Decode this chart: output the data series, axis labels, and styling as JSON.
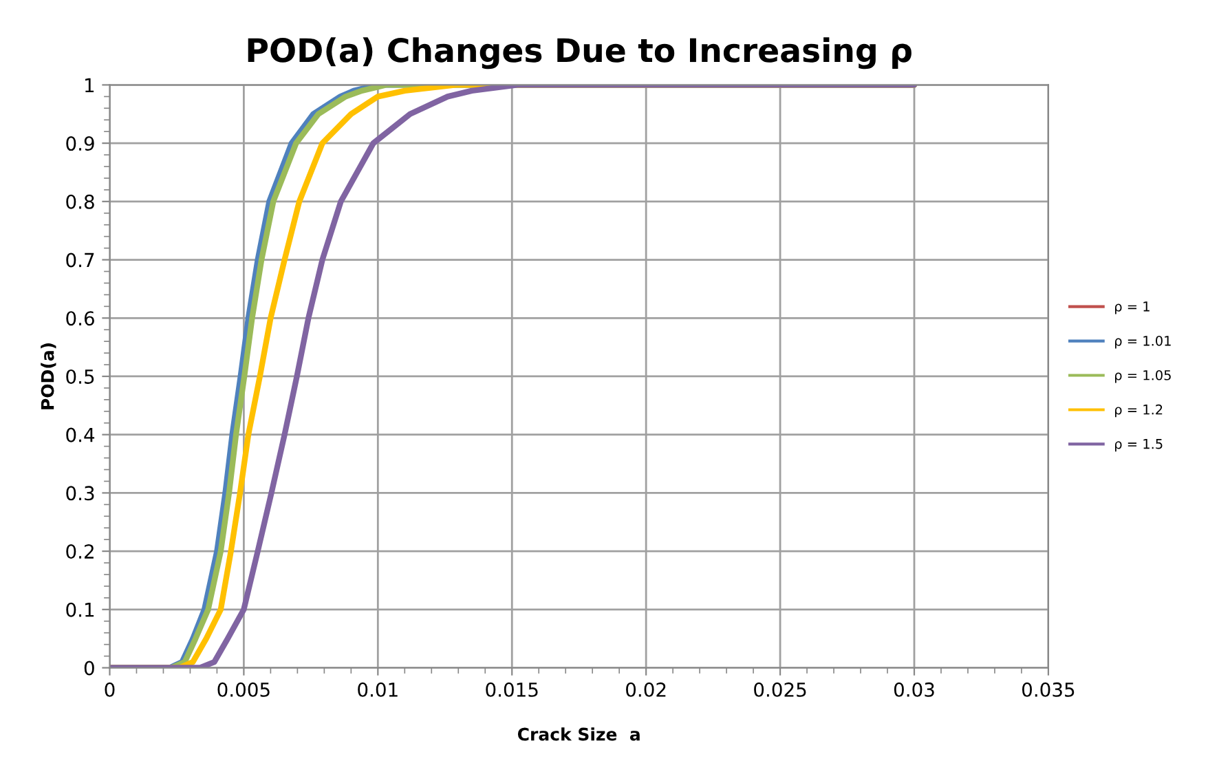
{
  "chart_data": {
    "type": "line",
    "title": "POD(a) Changes Due to Increasing ρ",
    "xlabel": "Crack Size  a",
    "ylabel": "POD(a)",
    "xlim": [
      0,
      0.035
    ],
    "xticks": [
      0,
      0.005,
      0.01,
      0.015,
      0.02,
      0.025,
      0.03,
      0.035
    ],
    "ylim": [
      0,
      1
    ],
    "yticks": [
      0,
      0.1,
      0.2,
      0.3,
      0.4,
      0.5,
      0.6,
      0.7,
      0.8,
      0.9,
      1
    ],
    "grid": true,
    "legend": "right",
    "marker": "none",
    "line_style": "solid",
    "series": [
      {
        "name": "ρ = 1",
        "color": "#c0504d"
      },
      {
        "name": "ρ = 1.01",
        "color": "#4f81bd",
        "x": [
          0,
          0.00224,
          0.0027,
          0.0031,
          0.00353,
          0.004,
          0.00431,
          0.00457,
          0.00488,
          0.00517,
          0.00552,
          0.00595,
          0.00678,
          0.00759,
          0.0086,
          0.0091,
          0.01,
          0.03
        ],
        "values": [
          0,
          0,
          0.01,
          0.05,
          0.1,
          0.2,
          0.3,
          0.4,
          0.5,
          0.6,
          0.7,
          0.8,
          0.9,
          0.95,
          0.98,
          0.99,
          1,
          1
        ]
      },
      {
        "name": "ρ = 1.05",
        "color": "#9bbb59",
        "x": [
          0,
          0.0023,
          0.0028,
          0.0032,
          0.00367,
          0.00414,
          0.00445,
          0.00471,
          0.00502,
          0.00531,
          0.00566,
          0.0061,
          0.00695,
          0.00778,
          0.0088,
          0.0094,
          0.0103,
          0.03
        ],
        "values": [
          0,
          0,
          0.01,
          0.05,
          0.1,
          0.2,
          0.3,
          0.4,
          0.5,
          0.6,
          0.7,
          0.8,
          0.9,
          0.95,
          0.98,
          0.99,
          1,
          1
        ]
      },
      {
        "name": "ρ = 1.2",
        "color": "#ffc000",
        "x": [
          0,
          0.0026,
          0.0031,
          0.0036,
          0.00414,
          0.00452,
          0.00486,
          0.00517,
          0.0056,
          0.006,
          0.00652,
          0.00707,
          0.00793,
          0.009,
          0.01,
          0.011,
          0.0129,
          0.03
        ],
        "values": [
          0,
          0,
          0.01,
          0.05,
          0.1,
          0.2,
          0.3,
          0.4,
          0.5,
          0.6,
          0.7,
          0.8,
          0.9,
          0.95,
          0.98,
          0.99,
          1,
          1
        ]
      },
      {
        "name": "ρ = 1.5",
        "color": "#8064a2",
        "x": [
          0,
          0.00336,
          0.0039,
          0.0044,
          0.005,
          0.00552,
          0.00603,
          0.00652,
          0.00698,
          0.00741,
          0.00793,
          0.00862,
          0.00983,
          0.0112,
          0.0126,
          0.0135,
          0.0152,
          0.03
        ],
        "values": [
          0,
          0,
          0.01,
          0.05,
          0.1,
          0.2,
          0.3,
          0.4,
          0.5,
          0.6,
          0.7,
          0.8,
          0.9,
          0.95,
          0.98,
          0.99,
          1,
          1
        ]
      }
    ]
  }
}
